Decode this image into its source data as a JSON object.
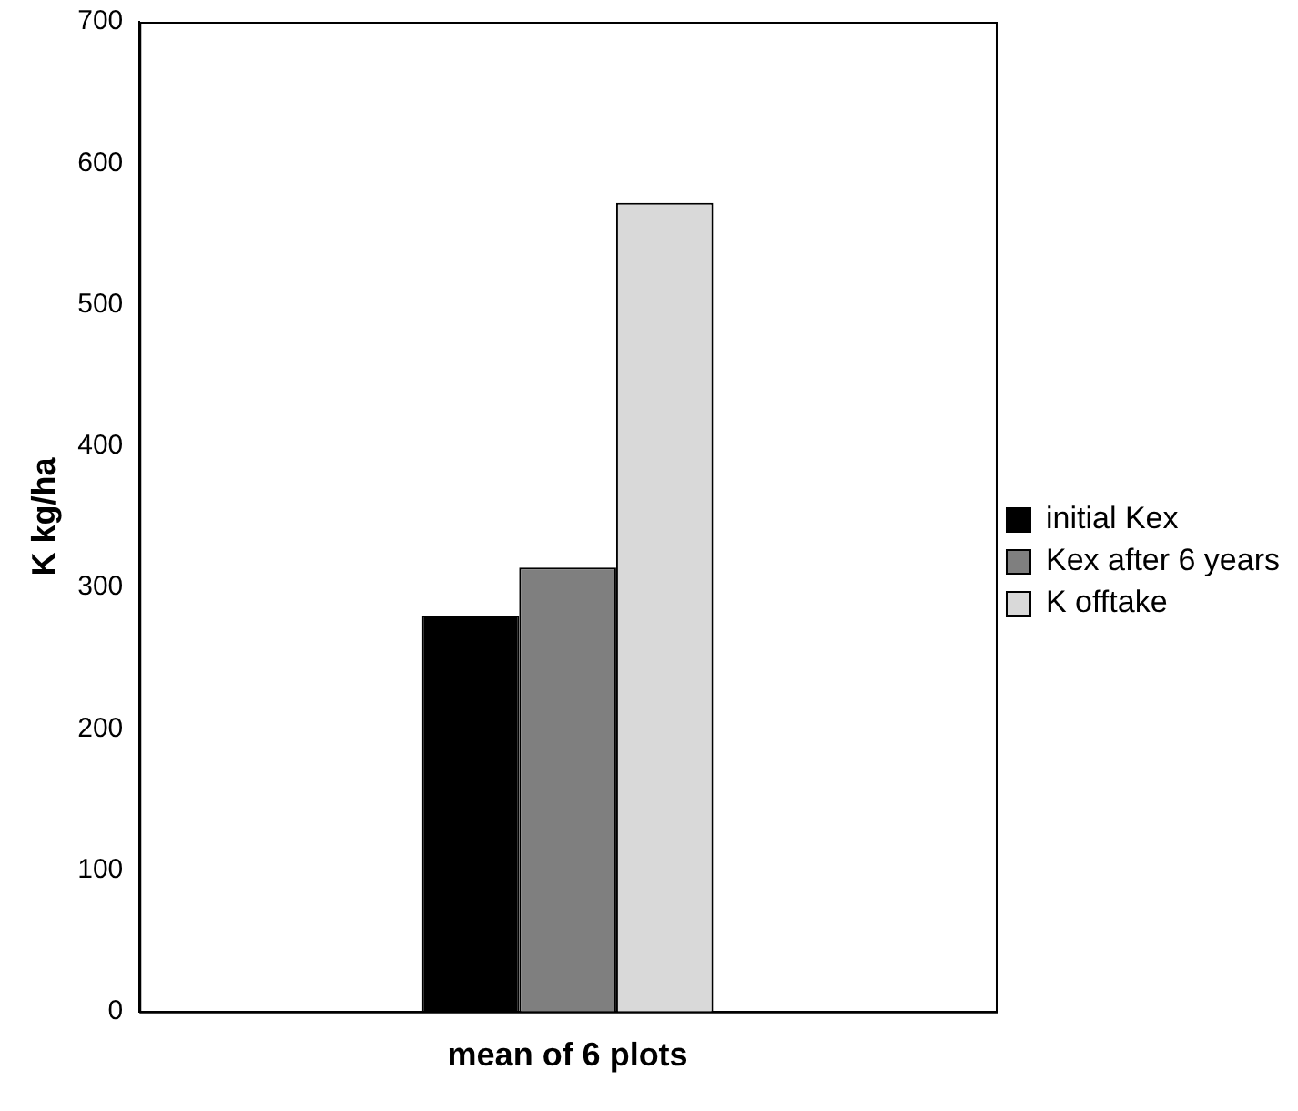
{
  "chart_data": {
    "type": "bar",
    "ylabel": "K kg/ha",
    "categories": [
      "mean of 6 plots"
    ],
    "series": [
      {
        "name": "initial Kex",
        "color": "#000000",
        "values": [
          280
        ]
      },
      {
        "name": "Kex after 6 years",
        "color": "#7f7f7f",
        "values": [
          314
        ]
      },
      {
        "name": "K offtake",
        "color": "#d9d9d9",
        "values": [
          572
        ]
      }
    ],
    "ylim": [
      0,
      700
    ],
    "yticks": [
      0,
      100,
      200,
      300,
      400,
      500,
      600,
      700
    ],
    "grid": false,
    "legend": "right"
  }
}
